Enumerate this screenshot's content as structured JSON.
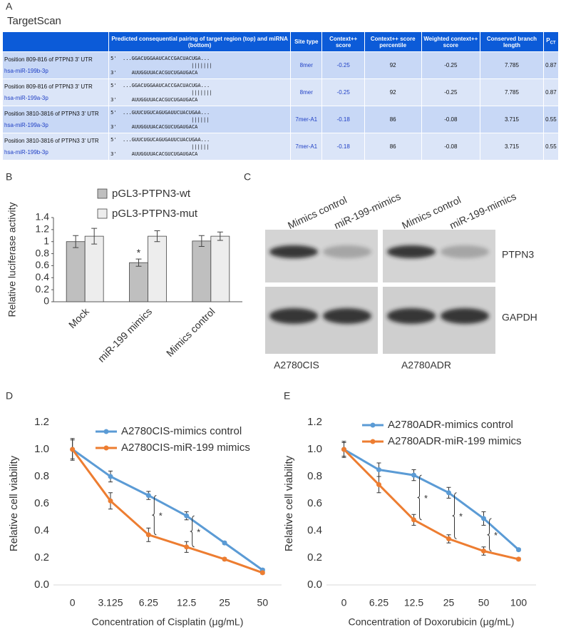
{
  "panel_labels": [
    "A",
    "B",
    "C",
    "D",
    "E"
  ],
  "table": {
    "title": "TargetScan",
    "header": [
      "Predicted consequential pairing of target region (top) and miRNA (bottom)",
      "Site type",
      "Context++ score",
      "Context++ score percentile",
      "Weighted context++ score",
      "Conserved branch length"
    ],
    "header_pct": {
      "main": "P",
      "sub": "CT"
    },
    "strand_top": "5'",
    "strand_bottom": "3'",
    "rows": [
      {
        "position": "Position 809-816 of PTPN3 3' UTR",
        "mirna": "hsa-miR-199b-3p",
        "seq_top": "...GGACUGGAAUCACCGACUACUGA...",
        "pairing": "|||||||",
        "seq_bottom": "AUUGGUUACACGUCUGAUGACA",
        "site_type": "8mer",
        "context": -0.25,
        "percentile": 92,
        "weighted": -0.25,
        "branch": 7.785,
        "pct": 0.87
      },
      {
        "position": "Position 809-816 of PTPN3 3' UTR",
        "mirna": "hsa-miR-199a-3p",
        "seq_top": "...GGACUGGAAUCACCGACUACUGA...",
        "pairing": "|||||||",
        "seq_bottom": "AUUGGUUACACGUCUGAUGACA",
        "site_type": "8mer",
        "context": -0.25,
        "percentile": 92,
        "weighted": -0.25,
        "branch": 7.785,
        "pct": 0.87
      },
      {
        "position": "Position 3810-3816 of PTPN3 3' UTR",
        "mirna": "hsa-miR-199a-3p",
        "seq_top": "...GUUCUGUCAGUGAUUCUACUGAA...",
        "pairing": "||||||",
        "seq_bottom": "AUUGGUUACACGUCUGAUGACA",
        "site_type": "7mer-A1",
        "context": -0.18,
        "percentile": 86,
        "weighted": -0.08,
        "branch": 3.715,
        "pct": 0.55
      },
      {
        "position": "Position 3810-3816 of PTPN3 3' UTR",
        "mirna": "hsa-miR-199b-3p",
        "seq_top": "...GUUCUGUCAGUGAUUCUACUGAA...",
        "pairing": "||||||",
        "seq_bottom": "AUUGGUUACACGUCUGAUGACA",
        "site_type": "7mer-A1",
        "context": -0.18,
        "percentile": 86,
        "weighted": -0.08,
        "branch": 3.715,
        "pct": 0.55
      }
    ]
  },
  "blot": {
    "lanes": [
      "Mimics control",
      "miR-199-mimics",
      "Mimics control",
      "miR-199-mimics"
    ],
    "proteins": [
      "PTPN3",
      "GAPDH"
    ],
    "cells": [
      "A2780CIS",
      "A2780ADR"
    ]
  },
  "chart_data": [
    {
      "type": "bar",
      "ylabel": "Relative luciferase activity",
      "categories": [
        "Mock",
        "miR-199 mimics",
        "Mimics control"
      ],
      "series": [
        {
          "name": "pGL3-PTPN3-wt",
          "color": "#bfbfbf",
          "values": [
            1.0,
            0.65,
            1.01
          ],
          "errors": [
            0.1,
            0.06,
            0.09
          ]
        },
        {
          "name": "pGL3-PTPN3-mut",
          "color": "#ededed",
          "values": [
            1.09,
            1.09,
            1.09
          ],
          "errors": [
            0.13,
            0.09,
            0.07
          ]
        }
      ],
      "annotations": [
        "*"
      ],
      "ylim": [
        0,
        1.4
      ],
      "yticks": [
        0,
        0.2,
        0.4,
        0.6,
        0.8,
        1,
        1.2,
        1.4
      ],
      "legend": "top"
    },
    {
      "type": "line",
      "xlabel": "Concentration of Cisplatin (μg/mL)",
      "ylabel": "Relative cell viability",
      "categories": [
        "0",
        "3.125",
        "6.25",
        "12.5",
        "25",
        "50"
      ],
      "series": [
        {
          "name": "A2780CIS-mimics control",
          "color": "#5b9bd5",
          "values": [
            1.0,
            0.8,
            0.66,
            0.51,
            0.31,
            0.11
          ],
          "errors": [
            0.07,
            0.04,
            0.03,
            0.03,
            0.01,
            0.01
          ]
        },
        {
          "name": "A2780CIS-miR-199 mimics",
          "color": "#ed7d31",
          "values": [
            1.0,
            0.62,
            0.37,
            0.28,
            0.19,
            0.09
          ],
          "errors": [
            0.08,
            0.06,
            0.05,
            0.04,
            0.01,
            0.01
          ]
        }
      ],
      "annotations": [
        "*",
        "*"
      ],
      "ylim": [
        0,
        1.2
      ],
      "yticks": [
        {
          "value": 0,
          "label": "0.0"
        },
        0.2,
        0.4,
        0.6,
        0.8,
        {
          "value": 1,
          "label": "1.0"
        },
        1.2
      ],
      "legend": "top-right"
    },
    {
      "type": "line",
      "xlabel": "Concentration of Doxorubicin  (μg/mL)",
      "ylabel": "Relative cell viability",
      "categories": [
        "0",
        "6.25",
        "12.5",
        "25",
        "50",
        "100"
      ],
      "series": [
        {
          "name": "A2780ADR-mimics control",
          "color": "#5b9bd5",
          "values": [
            1.0,
            0.85,
            0.81,
            0.68,
            0.49,
            0.26
          ],
          "errors": [
            0.06,
            0.05,
            0.04,
            0.04,
            0.05,
            0.01
          ]
        },
        {
          "name": "A2780ADR-miR-199 mimics",
          "color": "#ed7d31",
          "values": [
            1.0,
            0.74,
            0.48,
            0.34,
            0.25,
            0.19
          ],
          "errors": [
            0.05,
            0.06,
            0.04,
            0.03,
            0.03,
            0.01
          ]
        }
      ],
      "annotations": [
        "*",
        "*",
        "*"
      ],
      "ylim": [
        0,
        1.2
      ],
      "yticks": [
        {
          "value": 0,
          "label": "0.0"
        },
        0.2,
        0.4,
        0.6,
        0.8,
        {
          "value": 1,
          "label": "1.0"
        },
        1.2
      ],
      "legend": "top-right"
    }
  ]
}
